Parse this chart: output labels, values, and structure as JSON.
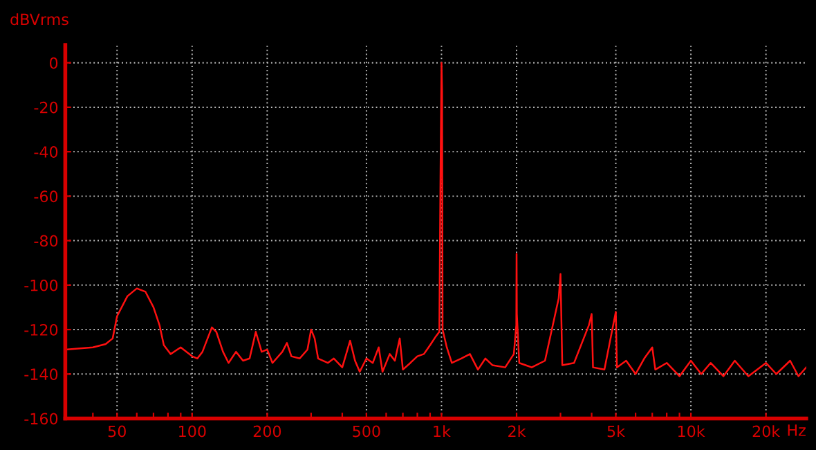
{
  "chart_data": {
    "type": "line",
    "ylabel": "dBVrms",
    "xlabel": "Hz",
    "log": "x",
    "grid": true,
    "marker": "none",
    "line_style": "solid",
    "xlim": [
      31,
      29000
    ],
    "ylim": [
      -160,
      8
    ],
    "xticks": [
      {
        "value": 40,
        "label": null
      },
      50,
      {
        "value": 60,
        "label": null
      },
      {
        "value": 70,
        "label": null
      },
      {
        "value": 80,
        "label": null
      },
      {
        "value": 90,
        "label": null
      },
      100,
      200,
      {
        "value": 300,
        "label": null
      },
      {
        "value": 400,
        "label": null
      },
      500,
      {
        "value": 600,
        "label": null
      },
      {
        "value": 700,
        "label": null
      },
      {
        "value": 800,
        "label": null
      },
      {
        "value": 900,
        "label": null
      },
      {
        "value": 1000,
        "label": "1k"
      },
      {
        "value": 2000,
        "label": "2k"
      },
      {
        "value": 3000,
        "label": null
      },
      {
        "value": 4000,
        "label": null
      },
      {
        "value": 5000,
        "label": "5k"
      },
      {
        "value": 6000,
        "label": null
      },
      {
        "value": 7000,
        "label": null
      },
      {
        "value": 8000,
        "label": null
      },
      {
        "value": 9000,
        "label": null
      },
      {
        "value": 10000,
        "label": "10k"
      },
      {
        "value": 20000,
        "label": "20k"
      }
    ],
    "yticks": [
      0,
      -20,
      -40,
      -60,
      -80,
      -100,
      -120,
      -140,
      -160
    ],
    "series": [
      {
        "color": "#ff1010",
        "x": [
          31,
          40,
          45,
          48,
          50,
          55,
          60,
          65,
          70,
          74,
          77,
          82,
          90,
          100,
          105,
          110,
          120,
          125,
          133,
          140,
          150,
          160,
          170,
          180,
          190,
          200,
          210,
          230,
          240,
          250,
          270,
          290,
          300,
          310,
          320,
          350,
          370,
          400,
          430,
          450,
          470,
          500,
          530,
          560,
          580,
          620,
          650,
          680,
          700,
          750,
          800,
          850,
          900,
          950,
          980,
          990,
          995,
          1000,
          1005,
          1010,
          1050,
          1100,
          1200,
          1300,
          1400,
          1500,
          1600,
          1800,
          1950,
          1995,
          2000,
          2005,
          2050,
          2300,
          2600,
          2950,
          3000,
          3050,
          3400,
          3900,
          4000,
          4050,
          4500,
          5000,
          5050,
          5500,
          6000,
          6500,
          7000,
          7200,
          8000,
          9000,
          10000,
          11000,
          12000,
          13500,
          15000,
          17000,
          20000,
          22000,
          25000,
          27000,
          29000
        ],
        "values": [
          -129,
          -128,
          -126.5,
          -124,
          -114,
          -105,
          -101.5,
          -103,
          -110,
          -118,
          -127,
          -131,
          -128,
          -132,
          -133,
          -130,
          -119,
          -121,
          -130,
          -135,
          -130,
          -134,
          -133,
          -121,
          -130,
          -129,
          -135,
          -130,
          -126,
          -132,
          -133,
          -129,
          -120,
          -124,
          -133,
          -135,
          -133,
          -137,
          -125,
          -134,
          -139,
          -133,
          -135,
          -128,
          -139,
          -131,
          -134,
          -124,
          -138,
          -135,
          -132,
          -131,
          -127,
          -123,
          -121,
          -55,
          -27,
          0,
          -13,
          -120,
          -128,
          -135,
          -133,
          -131,
          -138,
          -133,
          -136,
          -137,
          -131,
          -118,
          -86,
          -113,
          -135,
          -137,
          -134,
          -106,
          -95,
          -136,
          -135,
          -118,
          -113,
          -137,
          -138,
          -112,
          -137,
          -134,
          -140,
          -133,
          -128,
          -138,
          -135,
          -141,
          -134,
          -140,
          -135,
          -141,
          -134,
          -141,
          -135,
          -140,
          -134,
          -141,
          -137
        ]
      }
    ]
  }
}
